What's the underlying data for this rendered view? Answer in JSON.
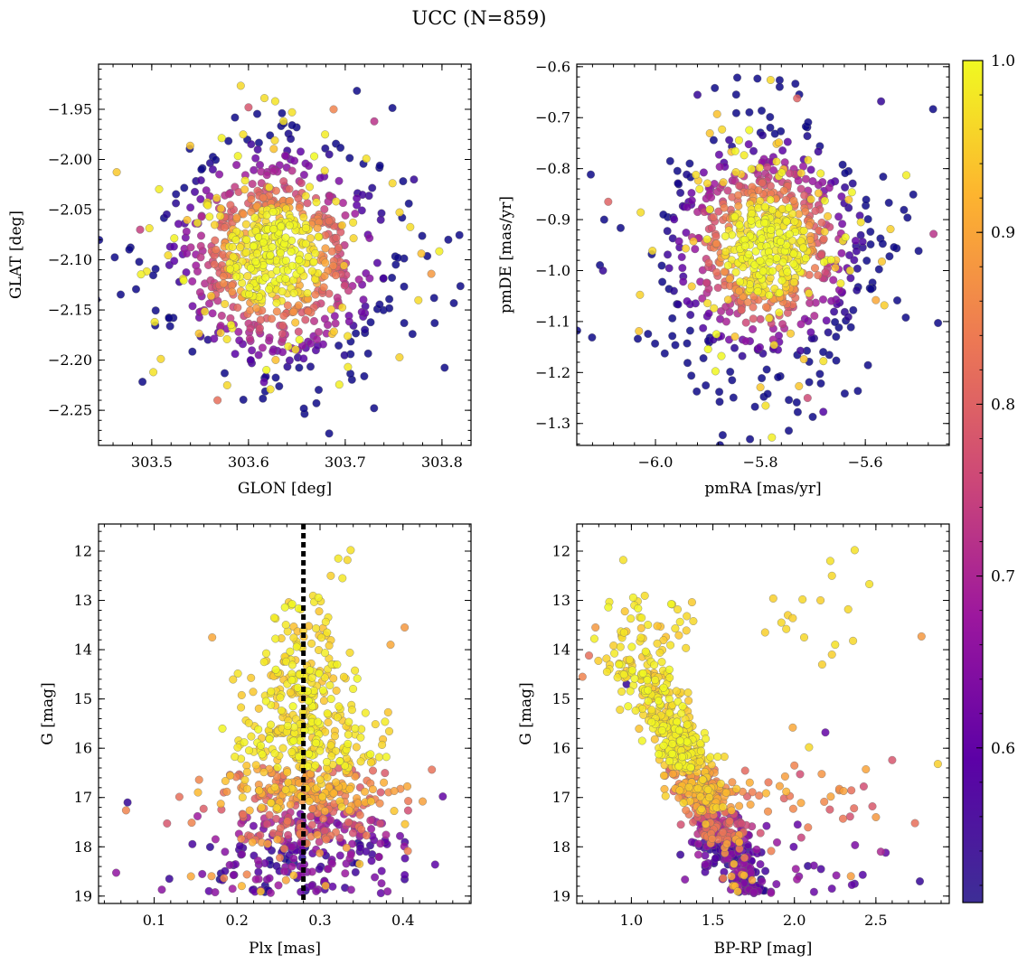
{
  "figure": {
    "title": "UCC (N=859)",
    "n_points": 859
  },
  "colorbar": {
    "colormap": "plasma",
    "range": [
      0.51,
      1.0
    ],
    "ticks": [
      0.6,
      0.7,
      0.8,
      0.9,
      1.0
    ],
    "tick_labels": [
      "0.6",
      "0.7",
      "0.8",
      "0.9",
      "1.0"
    ],
    "colors": [
      "#0d0887",
      "#5c01a6",
      "#9c179e",
      "#cc4778",
      "#ed7953",
      "#fdb42f",
      "#f0f921"
    ]
  },
  "chart_data": [
    {
      "type": "scatter",
      "id": "glon-glat",
      "xlabel": "GLON [deg]",
      "ylabel": "GLAT [deg]",
      "xlim": [
        303.445,
        303.83
      ],
      "ylim": [
        -2.285,
        -1.905
      ],
      "y_inverted": false,
      "xticks": [
        303.5,
        303.6,
        303.7,
        303.8
      ],
      "xtick_labels": [
        "303.5",
        "303.6",
        "303.7",
        "303.8"
      ],
      "yticks": [
        -1.95,
        -2.0,
        -2.05,
        -2.1,
        -2.15,
        -2.2,
        -2.25
      ],
      "ytick_labels": [
        "−1.95",
        "−2.00",
        "−2.05",
        "−2.10",
        "−2.15",
        "−2.20",
        "−2.25"
      ],
      "x_center": 303.628,
      "x_sigma": 0.052,
      "y_center": -2.097,
      "y_sigma": 0.052,
      "hand_points": [
        {
          "x": 303.6,
          "y": -1.948,
          "c": 0.78
        },
        {
          "x": 303.645,
          "y": -1.953,
          "c": 0.97
        },
        {
          "x": 303.688,
          "y": -1.95,
          "c": 0.85
        },
        {
          "x": 303.73,
          "y": -1.962,
          "c": 0.72
        },
        {
          "x": 303.771,
          "y": -2.02,
          "c": 0.55
        },
        {
          "x": 303.789,
          "y": -2.114,
          "c": 0.88
        },
        {
          "x": 303.488,
          "y": -2.07,
          "c": 0.74
        },
        {
          "x": 303.503,
          "y": -2.162,
          "c": 0.98
        },
        {
          "x": 303.568,
          "y": -2.24,
          "c": 0.82
        },
        {
          "x": 303.578,
          "y": -2.225,
          "c": 0.96
        },
        {
          "x": 303.616,
          "y": -2.222,
          "c": 0.6
        }
      ]
    },
    {
      "type": "scatter",
      "id": "pmra-pmde",
      "xlabel": "pmRA [mas/yr]",
      "ylabel": "pmDE [mas/yr]",
      "xlim": [
        -6.15,
        -5.44
      ],
      "ylim": [
        -1.343,
        -0.595
      ],
      "y_inverted": false,
      "xticks": [
        -6.0,
        -5.8,
        -5.6
      ],
      "xtick_labels": [
        "−6.0",
        "−5.8",
        "−5.6"
      ],
      "yticks": [
        -0.6,
        -0.7,
        -0.8,
        -0.9,
        -1.0,
        -1.1,
        -1.2,
        -1.3
      ],
      "ytick_labels": [
        "−0.6",
        "−0.7",
        "−0.8",
        "−0.9",
        "−1.0",
        "−1.1",
        "−1.2",
        "−1.3"
      ],
      "x_center": -5.79,
      "x_sigma": 0.085,
      "y_center": -0.955,
      "y_sigma": 0.1,
      "hand_points": [
        {
          "x": -5.92,
          "y": -0.655,
          "c": 0.55
        },
        {
          "x": -5.73,
          "y": -0.662,
          "c": 0.8
        },
        {
          "x": -5.57,
          "y": -0.668,
          "c": 0.55
        },
        {
          "x": -6.1,
          "y": -1.0,
          "c": 0.55
        },
        {
          "x": -6.09,
          "y": -0.865,
          "c": 0.8
        },
        {
          "x": -5.47,
          "y": -0.928,
          "c": 0.72
        },
        {
          "x": -5.71,
          "y": -1.25,
          "c": 0.76
        },
        {
          "x": -5.68,
          "y": -1.277,
          "c": 0.58
        },
        {
          "x": -5.79,
          "y": -1.265,
          "c": 0.97
        },
        {
          "x": -5.58,
          "y": -1.058,
          "c": 0.9
        }
      ]
    },
    {
      "type": "scatter",
      "id": "plx-g",
      "xlabel": "Plx [mas]",
      "ylabel": "G [mag]",
      "xlim": [
        0.033,
        0.482
      ],
      "ylim": [
        11.45,
        19.15
      ],
      "y_inverted": true,
      "xticks": [
        0.1,
        0.2,
        0.3,
        0.4
      ],
      "xtick_labels": [
        "0.1",
        "0.2",
        "0.3",
        "0.4"
      ],
      "yticks": [
        12,
        13,
        14,
        15,
        16,
        17,
        18,
        19
      ],
      "ytick_labels": [
        "12",
        "13",
        "14",
        "15",
        "16",
        "17",
        "18",
        "19"
      ],
      "vline": 0.28,
      "hand_points": [
        {
          "x": 0.337,
          "y": 11.98,
          "c": 0.97
        },
        {
          "x": 0.322,
          "y": 12.15,
          "c": 0.98
        },
        {
          "x": 0.333,
          "y": 12.18,
          "c": 0.96
        },
        {
          "x": 0.313,
          "y": 12.5,
          "c": 0.95
        },
        {
          "x": 0.327,
          "y": 12.55,
          "c": 0.98
        },
        {
          "x": 0.068,
          "y": 17.1,
          "c": 0.55
        },
        {
          "x": 0.448,
          "y": 16.98,
          "c": 0.6
        },
        {
          "x": 0.17,
          "y": 13.75,
          "c": 0.9
        },
        {
          "x": 0.402,
          "y": 13.55,
          "c": 0.88
        },
        {
          "x": 0.385,
          "y": 13.9,
          "c": 0.9
        }
      ]
    },
    {
      "type": "scatter",
      "id": "bprp-g",
      "xlabel": "BP-RP [mag]",
      "ylabel": "G [mag]",
      "xlim": [
        0.665,
        2.95
      ],
      "ylim": [
        11.45,
        19.15
      ],
      "y_inverted": true,
      "xticks": [
        1.0,
        1.5,
        2.0,
        2.5
      ],
      "xtick_labels": [
        "1.0",
        "1.5",
        "2.0",
        "2.5"
      ],
      "yticks": [
        12,
        13,
        14,
        15,
        16,
        17,
        18,
        19
      ],
      "ytick_labels": [
        "12",
        "13",
        "14",
        "15",
        "16",
        "17",
        "18",
        "19"
      ],
      "hand_points": [
        {
          "x": 0.95,
          "y": 12.18,
          "c": 0.97
        },
        {
          "x": 2.22,
          "y": 12.2,
          "c": 0.97
        },
        {
          "x": 2.37,
          "y": 11.98,
          "c": 0.97
        },
        {
          "x": 2.23,
          "y": 12.5,
          "c": 0.96
        },
        {
          "x": 2.46,
          "y": 12.67,
          "c": 0.97
        },
        {
          "x": 1.87,
          "y": 12.96,
          "c": 0.95
        },
        {
          "x": 1.96,
          "y": 13.3,
          "c": 0.95
        },
        {
          "x": 2.05,
          "y": 12.98,
          "c": 0.96
        },
        {
          "x": 2.16,
          "y": 13.0,
          "c": 0.95
        },
        {
          "x": 1.92,
          "y": 13.45,
          "c": 0.96
        },
        {
          "x": 1.82,
          "y": 13.65,
          "c": 0.95
        },
        {
          "x": 1.95,
          "y": 13.58,
          "c": 0.96
        },
        {
          "x": 1.99,
          "y": 13.36,
          "c": 0.95
        },
        {
          "x": 2.06,
          "y": 13.75,
          "c": 0.96
        },
        {
          "x": 2.25,
          "y": 13.9,
          "c": 0.97
        },
        {
          "x": 2.33,
          "y": 13.18,
          "c": 0.96
        },
        {
          "x": 2.36,
          "y": 13.82,
          "c": 0.96
        },
        {
          "x": 2.23,
          "y": 14.1,
          "c": 0.95
        },
        {
          "x": 2.17,
          "y": 14.3,
          "c": 0.95
        },
        {
          "x": 2.78,
          "y": 13.73,
          "c": 0.88
        },
        {
          "x": 2.88,
          "y": 16.32,
          "c": 0.95
        },
        {
          "x": 2.77,
          "y": 18.7,
          "c": 0.55
        },
        {
          "x": 2.37,
          "y": 18.75,
          "c": 0.58
        },
        {
          "x": 2.23,
          "y": 18.85,
          "c": 0.6
        },
        {
          "x": 2.6,
          "y": 16.24,
          "c": 0.78
        },
        {
          "x": 2.74,
          "y": 17.52,
          "c": 0.82
        },
        {
          "x": 2.5,
          "y": 17.4,
          "c": 0.88
        },
        {
          "x": 2.53,
          "y": 18.1,
          "c": 0.7
        },
        {
          "x": 2.56,
          "y": 18.12,
          "c": 0.6
        },
        {
          "x": 2.12,
          "y": 18.38,
          "c": 0.62
        },
        {
          "x": 2.02,
          "y": 17.55,
          "c": 0.6
        },
        {
          "x": 1.99,
          "y": 15.58,
          "c": 0.9
        },
        {
          "x": 2.09,
          "y": 15.98,
          "c": 0.96
        },
        {
          "x": 2.0,
          "y": 16.35,
          "c": 0.85
        },
        {
          "x": 2.19,
          "y": 15.68,
          "c": 0.6
        },
        {
          "x": 0.78,
          "y": 13.55,
          "c": 0.88
        },
        {
          "x": 0.74,
          "y": 14.12,
          "c": 0.82
        },
        {
          "x": 0.7,
          "y": 14.55,
          "c": 0.85
        },
        {
          "x": 0.85,
          "y": 14.45,
          "c": 0.97
        },
        {
          "x": 0.94,
          "y": 14.85,
          "c": 0.97
        },
        {
          "x": 0.93,
          "y": 15.22,
          "c": 0.96
        },
        {
          "x": 0.97,
          "y": 14.7,
          "c": 0.55
        },
        {
          "x": 1.25,
          "y": 13.08,
          "c": 0.97
        },
        {
          "x": 1.34,
          "y": 13.32,
          "c": 0.96
        },
        {
          "x": 1.38,
          "y": 13.42,
          "c": 0.96
        }
      ]
    }
  ]
}
